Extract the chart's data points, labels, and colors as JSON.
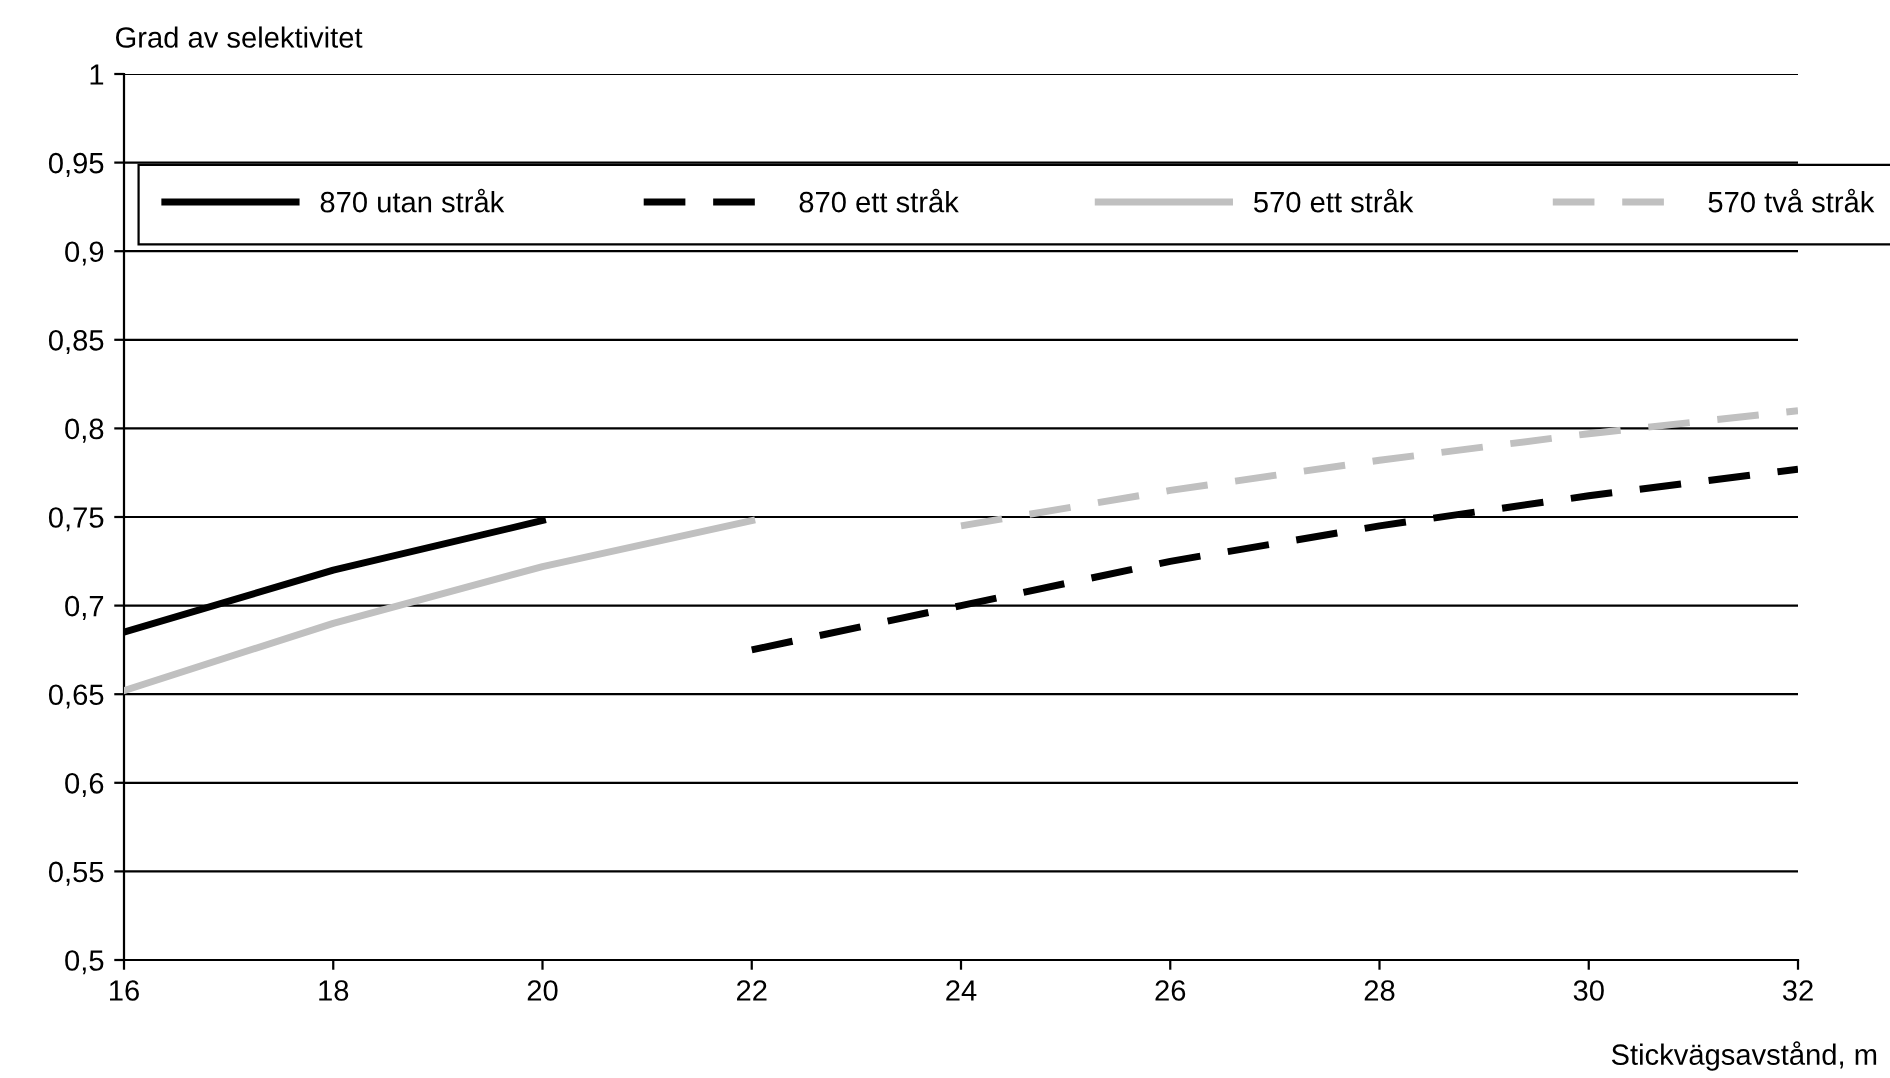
{
  "chart_data": {
    "type": "line",
    "ylabel": "Grad av selektivitet",
    "xlabel": "Stickvägsavstånd, m",
    "xlim": [
      16,
      32
    ],
    "xticks": [
      16,
      18,
      20,
      22,
      24,
      26,
      28,
      30,
      32
    ],
    "ylim": [
      0.5,
      1
    ],
    "yticks": [
      {
        "value": 0.5,
        "label": "0,5"
      },
      {
        "value": 0.55,
        "label": "0,55"
      },
      {
        "value": 0.6,
        "label": "0,6"
      },
      {
        "value": 0.65,
        "label": "0,65"
      },
      {
        "value": 0.7,
        "label": "0,7"
      },
      {
        "value": 0.75,
        "label": "0,75"
      },
      {
        "value": 0.8,
        "label": "0,8"
      },
      {
        "value": 0.85,
        "label": "0,85"
      },
      {
        "value": 0.9,
        "label": "0,9"
      },
      {
        "value": 0.95,
        "label": "0,95"
      },
      {
        "value": 1,
        "label": "1"
      }
    ],
    "grid": "y",
    "legend": "top",
    "marker": "none",
    "series": [
      {
        "name": "870 utan stråk",
        "color": "#000000",
        "line_style": "solid",
        "x": [
          16,
          18,
          20
        ],
        "values": [
          0.685,
          0.72,
          0.748
        ]
      },
      {
        "name": "870 ett stråk",
        "color": "#000000",
        "line_style": "dashed",
        "x": [
          22,
          24,
          26,
          28,
          30,
          32
        ],
        "values": [
          0.675,
          0.7,
          0.725,
          0.745,
          0.762,
          0.777
        ]
      },
      {
        "name": "570 ett stråk",
        "color": "#c0c0c0",
        "line_style": "solid",
        "x": [
          16,
          18,
          20,
          22
        ],
        "values": [
          0.652,
          0.69,
          0.722,
          0.748
        ]
      },
      {
        "name": "570 två stråk",
        "color": "#c0c0c0",
        "line_style": "dashed",
        "x": [
          24,
          26,
          28,
          30,
          32
        ],
        "values": [
          0.745,
          0.765,
          0.782,
          0.797,
          0.81
        ]
      }
    ]
  }
}
